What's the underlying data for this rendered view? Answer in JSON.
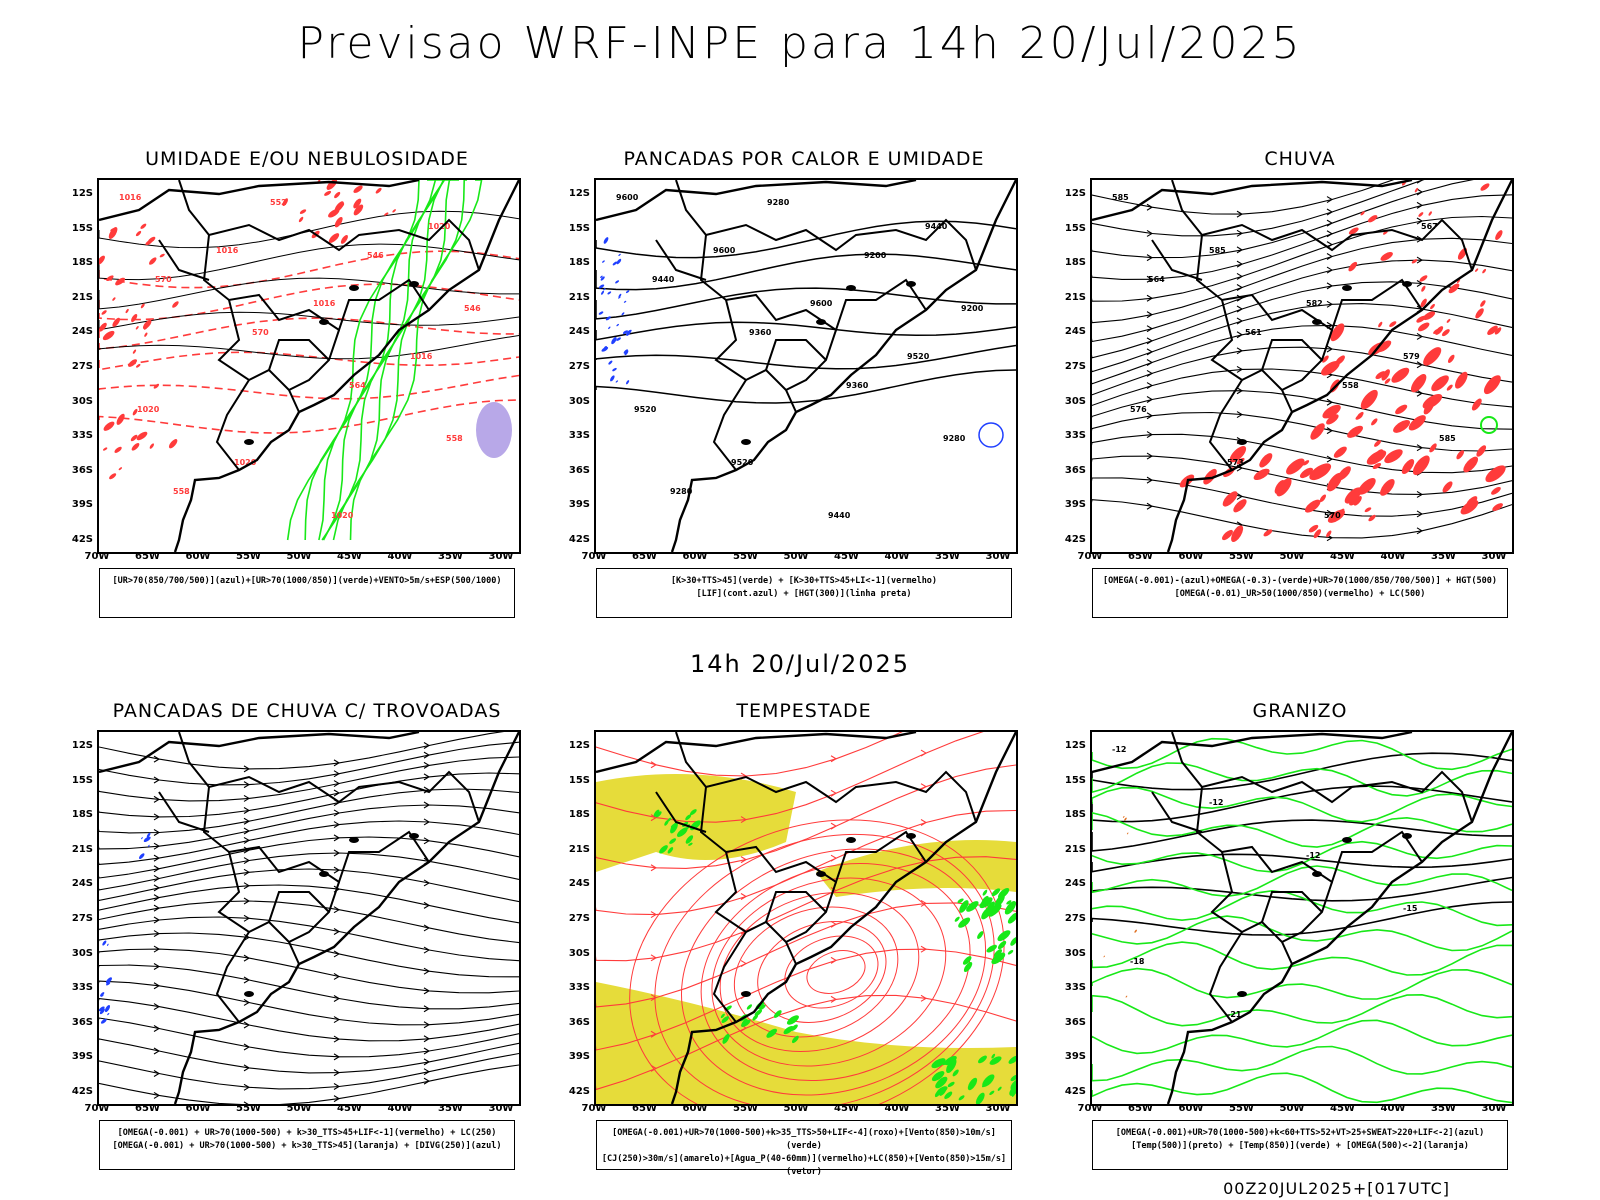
{
  "page": {
    "title": "Previsao WRF-INPE  para 14h 20/Jul/2025",
    "subtitle": "14h 20/Jul/2025",
    "footer": "00Z20JUL2025+[017UTC]"
  },
  "axes": {
    "lat_labels": [
      "12S",
      "15S",
      "18S",
      "21S",
      "24S",
      "27S",
      "30S",
      "33S",
      "36S",
      "39S",
      "42S"
    ],
    "lon_labels": [
      "70W",
      "65W",
      "60W",
      "55W",
      "50W",
      "45W",
      "40W",
      "35W",
      "30W"
    ]
  },
  "colors": {
    "red": "#ff3b3b",
    "green": "#18e818",
    "blue": "#2040ff",
    "yellow": "#e6dc3a",
    "purple": "#b8a8e8",
    "black": "#000000"
  },
  "panels": [
    {
      "title": "UMIDADE E/OU NEBULOSIDADE",
      "legend": [
        "[UR>70(850/700/500)](azul)+[UR>70(1000/850)](verde)+VENTO>5m/s+ESP(500/1000)"
      ],
      "contour_labels": [
        "1016",
        "1016",
        "1016",
        "1016",
        "1020",
        "1020",
        "1020",
        "1020",
        "570",
        "570",
        "564",
        "558",
        "558",
        "552",
        "546",
        "546"
      ]
    },
    {
      "title": "PANCADAS POR CALOR E UMIDADE",
      "legend": [
        "[K>30+TTS>45](verde) + [K>30+TTS>45+LI<-1](vermelho)",
        "[LIF](cont.azul) + [HGT(300)](linha preta)"
      ],
      "contour_labels": [
        "9600",
        "9600",
        "9600",
        "9520",
        "9520",
        "9520",
        "9440",
        "9440",
        "9440",
        "9360",
        "9360",
        "9280",
        "9280",
        "9280",
        "9200",
        "9200"
      ]
    },
    {
      "title": "CHUVA",
      "legend": [
        "[OMEGA(-0.001)-(azul)+OMEGA(-0.3)-(verde)+UR>70(1000/850/700/500)] + HGT(500)",
        "[OMEGA(-0.01)_UR>50(1000/850)(vermelho) + LC(500)"
      ],
      "contour_labels": [
        "585",
        "585",
        "582",
        "579",
        "576",
        "573",
        "570",
        "567",
        "564",
        "561",
        "558",
        "585"
      ]
    },
    {
      "title": "PANCADAS DE CHUVA C/ TROVOADAS",
      "legend": [
        "[OMEGA(-0.001) + UR>70(1000-500) + k>30_TTS>45+LIF<-1](vermelho) + LC(250)",
        "[OMEGA(-0.001) + UR>70(1000-500) + k>30_TTS>45](laranja) + [DIVG(250)](azul)"
      ],
      "contour_labels": []
    },
    {
      "title": "TEMPESTADE",
      "legend": [
        "[OMEGA(-0.001)+UR>70(1000-500)+k>35_TTS>50+LIF<-4](roxo)+[Vento(850)>10m/s](verde)",
        "[CJ(250)>30m/s](amarelo)+[Agua_P(40-60mm)](vermelho)+LC(850)+[Vento(850)>15m/s](vetor)"
      ],
      "contour_labels": []
    },
    {
      "title": "GRANIZO",
      "legend": [
        "[OMEGA(-0.001)+UR>70(1000-500)+k<60+TTS>52+VT>25+SWEAT>220+LIF<-2](azul)",
        "[Temp(500)](preto) + [Temp(850)](verde) + [OMEGA(500)<-2](laranja)"
      ],
      "contour_labels": [
        "-12",
        "-12",
        "-12",
        "-15",
        "-18",
        "-21"
      ]
    }
  ]
}
